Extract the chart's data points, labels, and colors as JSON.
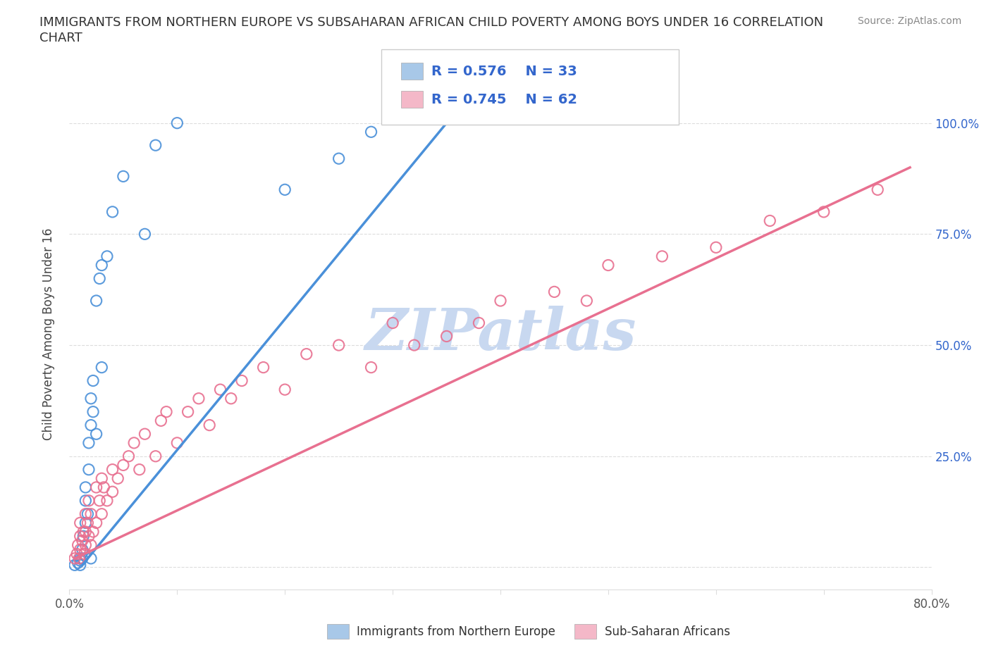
{
  "title_line1": "IMMIGRANTS FROM NORTHERN EUROPE VS SUBSAHARAN AFRICAN CHILD POVERTY AMONG BOYS UNDER 16 CORRELATION",
  "title_line2": "CHART",
  "source_text": "Source: ZipAtlas.com",
  "ylabel": "Child Poverty Among Boys Under 16",
  "xlim": [
    0.0,
    0.8
  ],
  "ylim": [
    -0.05,
    1.1
  ],
  "xtick_positions": [
    0.0,
    0.1,
    0.2,
    0.3,
    0.4,
    0.5,
    0.6,
    0.7,
    0.8
  ],
  "xticklabels": [
    "0.0%",
    "",
    "",
    "",
    "",
    "",
    "",
    "",
    "80.0%"
  ],
  "ytick_positions": [
    0.0,
    0.25,
    0.5,
    0.75,
    1.0
  ],
  "yticklabels_right": [
    "",
    "25.0%",
    "50.0%",
    "75.0%",
    "100.0%"
  ],
  "r_blue": "0.576",
  "n_blue": "33",
  "r_pink": "0.745",
  "n_pink": "62",
  "color_blue": "#a8c8e8",
  "color_blue_dark": "#4a90d9",
  "color_pink": "#f4b8c8",
  "color_pink_dark": "#e87090",
  "color_text_blue": "#3366cc",
  "watermark_text": "ZIPatlas",
  "watermark_color": "#c8d8f0",
  "grid_color": "#dddddd",
  "blue_scatter_x": [
    0.005,
    0.008,
    0.01,
    0.01,
    0.01,
    0.012,
    0.012,
    0.013,
    0.015,
    0.015,
    0.015,
    0.017,
    0.018,
    0.018,
    0.02,
    0.02,
    0.02,
    0.022,
    0.022,
    0.025,
    0.025,
    0.028,
    0.03,
    0.03,
    0.035,
    0.04,
    0.05,
    0.07,
    0.08,
    0.1,
    0.2,
    0.25,
    0.28
  ],
  "blue_scatter_y": [
    0.005,
    0.01,
    0.005,
    0.015,
    0.02,
    0.02,
    0.04,
    0.07,
    0.1,
    0.15,
    0.18,
    0.12,
    0.22,
    0.28,
    0.02,
    0.32,
    0.38,
    0.35,
    0.42,
    0.3,
    0.6,
    0.65,
    0.68,
    0.45,
    0.7,
    0.8,
    0.88,
    0.75,
    0.95,
    1.0,
    0.85,
    0.92,
    0.98
  ],
  "pink_scatter_x": [
    0.005,
    0.007,
    0.008,
    0.009,
    0.01,
    0.01,
    0.01,
    0.012,
    0.013,
    0.014,
    0.015,
    0.015,
    0.015,
    0.017,
    0.018,
    0.018,
    0.02,
    0.02,
    0.022,
    0.025,
    0.025,
    0.028,
    0.03,
    0.03,
    0.032,
    0.035,
    0.04,
    0.04,
    0.045,
    0.05,
    0.055,
    0.06,
    0.065,
    0.07,
    0.08,
    0.085,
    0.09,
    0.1,
    0.11,
    0.12,
    0.13,
    0.14,
    0.15,
    0.16,
    0.18,
    0.2,
    0.22,
    0.25,
    0.28,
    0.3,
    0.32,
    0.35,
    0.38,
    0.4,
    0.45,
    0.48,
    0.5,
    0.55,
    0.6,
    0.65,
    0.7,
    0.75
  ],
  "pink_scatter_y": [
    0.02,
    0.03,
    0.05,
    0.02,
    0.04,
    0.07,
    0.1,
    0.06,
    0.08,
    0.03,
    0.05,
    0.08,
    0.12,
    0.1,
    0.07,
    0.15,
    0.05,
    0.12,
    0.08,
    0.1,
    0.18,
    0.15,
    0.12,
    0.2,
    0.18,
    0.15,
    0.17,
    0.22,
    0.2,
    0.23,
    0.25,
    0.28,
    0.22,
    0.3,
    0.25,
    0.33,
    0.35,
    0.28,
    0.35,
    0.38,
    0.32,
    0.4,
    0.38,
    0.42,
    0.45,
    0.4,
    0.48,
    0.5,
    0.45,
    0.55,
    0.5,
    0.52,
    0.55,
    0.6,
    0.62,
    0.6,
    0.68,
    0.7,
    0.72,
    0.78,
    0.8,
    0.85
  ],
  "blue_line_x": [
    0.012,
    0.35
  ],
  "blue_line_y": [
    0.005,
    1.0
  ],
  "pink_line_x": [
    0.005,
    0.78
  ],
  "pink_line_y": [
    0.02,
    0.9
  ]
}
